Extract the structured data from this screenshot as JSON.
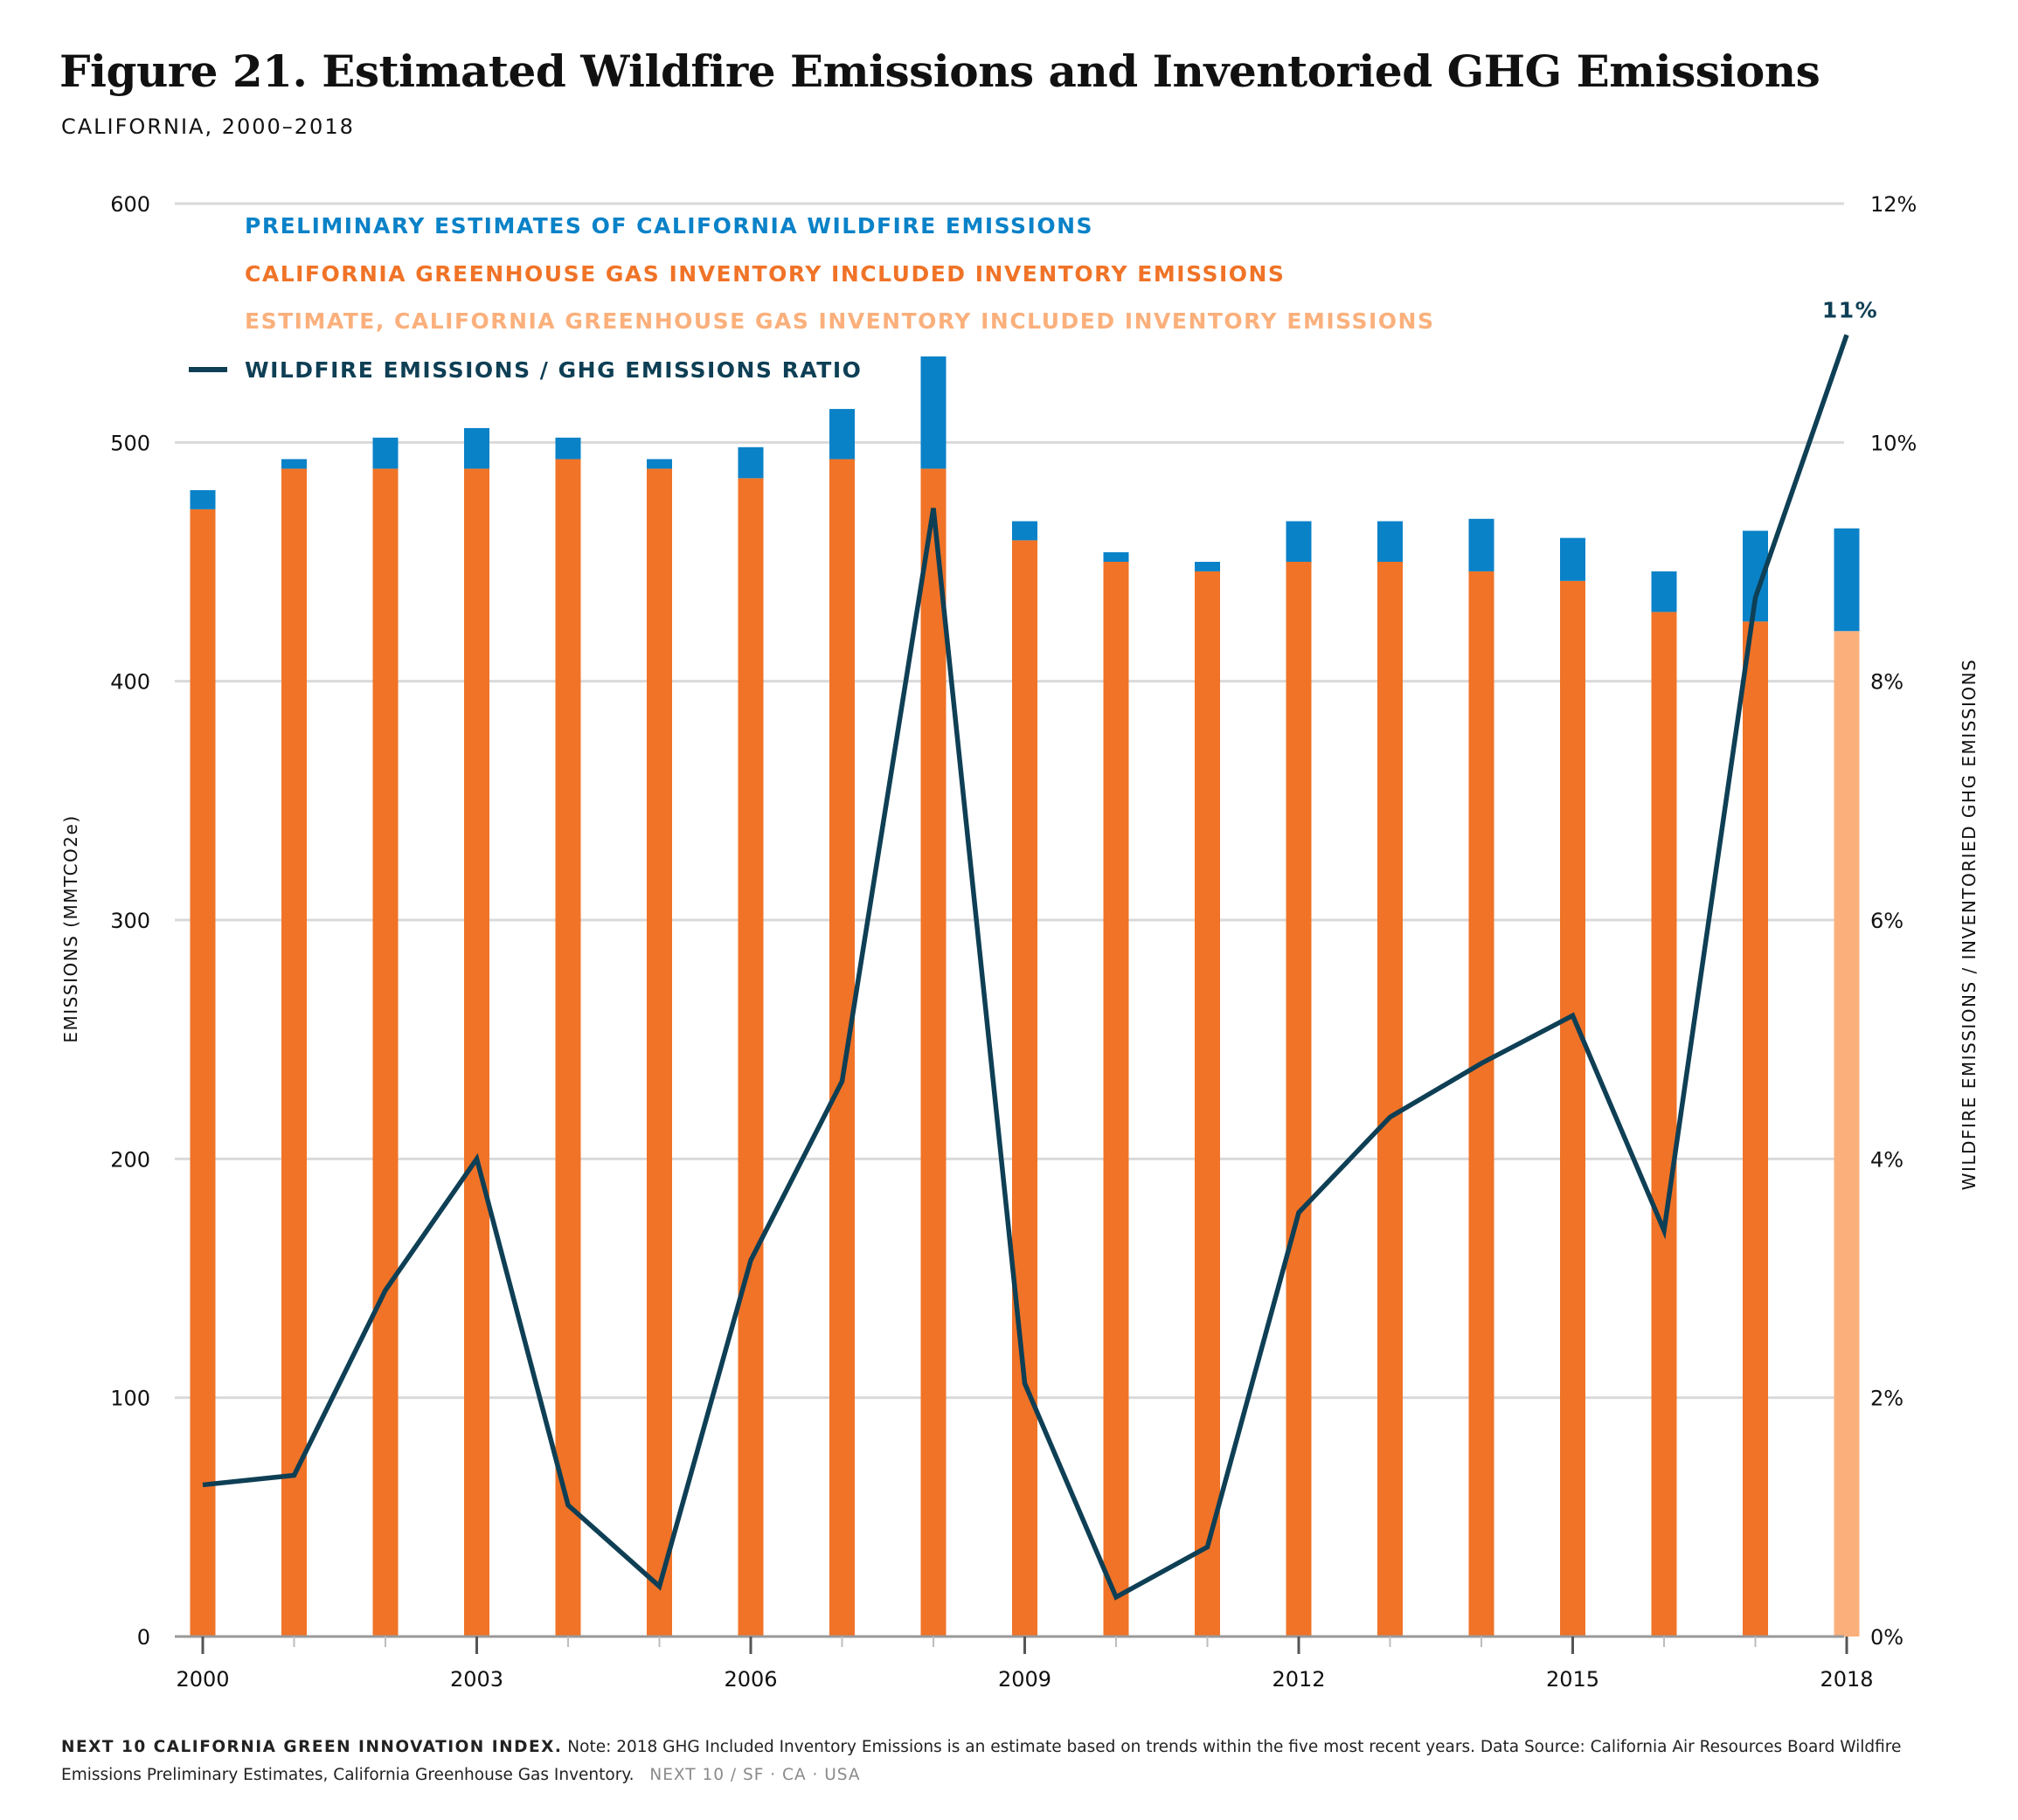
{
  "title": "Figure 21. Estimated Wildfire Emissions and Inventoried GHG Emissions",
  "subtitle": "CALIFORNIA, 2000–2018",
  "footnote": {
    "brand": "NEXT 10 CALIFORNIA GREEN INNOVATION INDEX.",
    "text": "Note: 2018 GHG Included Inventory Emissions is an estimate based on trends within the five most recent years. Data Source: California Air Resources Board Wildfire Emissions Preliminary Estimates, California Greenhouse Gas Inventory.",
    "tag": "NEXT 10  /  SF · CA · USA"
  },
  "colors": {
    "wildfire": "#0a82c8",
    "inventory": "#f07327",
    "estimate": "#fbb07c",
    "ratio_line": "#0e3f55",
    "grid": "#d9d9d9",
    "axis": "#999999"
  },
  "chart_data": {
    "type": "bar",
    "x": [
      "2000",
      "2001",
      "2002",
      "2003",
      "2004",
      "2005",
      "2006",
      "2007",
      "2008",
      "2009",
      "2010",
      "2011",
      "2012",
      "2013",
      "2014",
      "2015",
      "2016",
      "2017",
      "2018"
    ],
    "x_tick_labels": [
      "2000",
      "2003",
      "2006",
      "2009",
      "2012",
      "2015",
      "2018"
    ],
    "ylabel": "EMISSIONS (MMTCO2e)",
    "ylim": [
      0,
      600
    ],
    "y_ticks": [
      "0",
      "100",
      "200",
      "300",
      "400",
      "500",
      "600"
    ],
    "y2label": "WILDFIRE EMISSIONS / INVENTORIED GHG EMISSIONS",
    "y2lim": [
      0,
      12
    ],
    "y2_ticks": [
      "0%",
      "2%",
      "4%",
      "6%",
      "8%",
      "10%",
      "12%"
    ],
    "grid": true,
    "legend_position": "top-left",
    "series": [
      {
        "name": "PRELIMINARY ESTIMATES OF CALIFORNIA WILDFIRE EMISSIONS",
        "type": "bar-stacked",
        "values": [
          8,
          4,
          13,
          17,
          9,
          4,
          13,
          21,
          47,
          8,
          4,
          4,
          17,
          17,
          22,
          18,
          17,
          38,
          43
        ]
      },
      {
        "name": "CALIFORNIA GREENHOUSE GAS INVENTORY INCLUDED INVENTORY EMISSIONS",
        "type": "bar-stacked",
        "values": [
          472,
          489,
          489,
          489,
          493,
          489,
          485,
          493,
          489,
          459,
          450,
          446,
          450,
          450,
          446,
          442,
          429,
          425,
          null
        ]
      },
      {
        "name": "ESTIMATE, CALIFORNIA GREENHOUSE GAS INVENTORY INCLUDED INVENTORY EMISSIONS",
        "type": "bar-stacked",
        "values": [
          null,
          null,
          null,
          null,
          null,
          null,
          null,
          null,
          null,
          null,
          null,
          null,
          null,
          null,
          null,
          null,
          null,
          null,
          421
        ]
      },
      {
        "name": "WILDFIRE EMISSIONS / GHG EMISSIONS RATIO",
        "type": "line",
        "axis": "right",
        "values": [
          1.27,
          1.35,
          2.9,
          4.0,
          1.1,
          0.42,
          3.15,
          4.65,
          9.45,
          2.12,
          0.33,
          0.75,
          3.55,
          4.35,
          4.8,
          5.2,
          3.4,
          8.7,
          10.9
        ]
      }
    ],
    "annotations": [
      {
        "x": "2018",
        "text": "11%"
      }
    ]
  }
}
